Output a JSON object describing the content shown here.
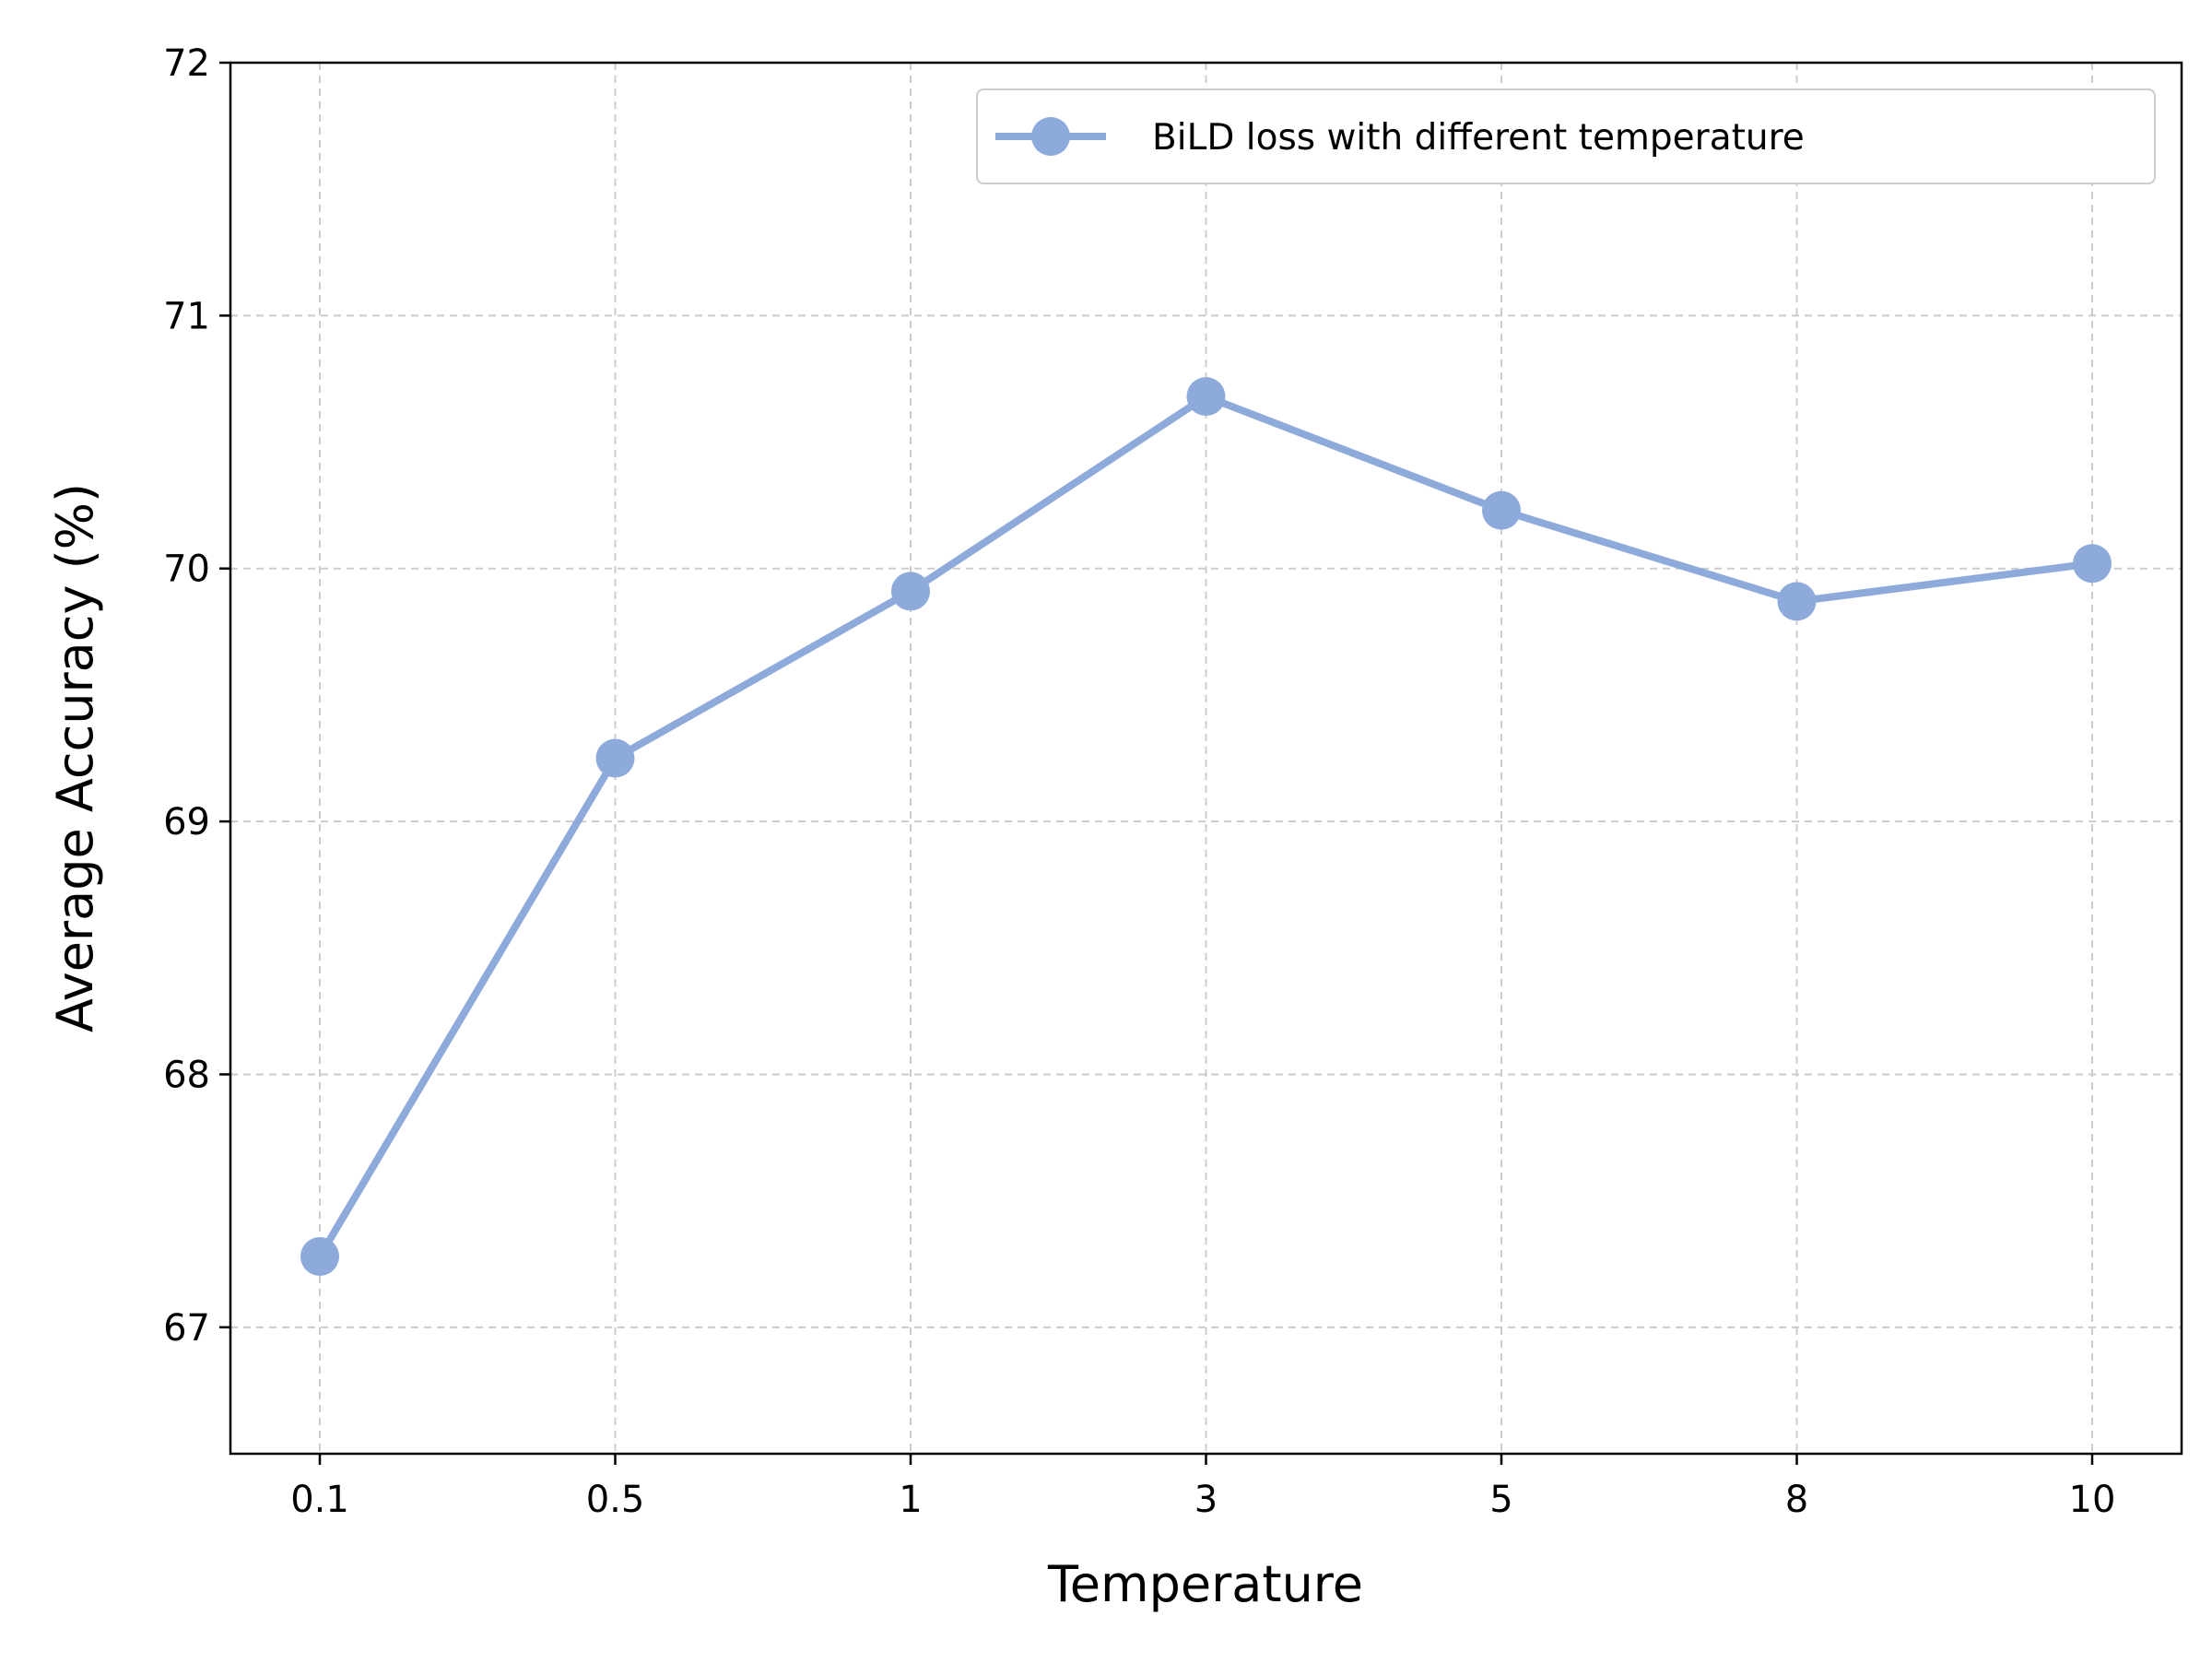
{
  "chart_data": {
    "type": "line",
    "title": "",
    "xlabel": "Temperature",
    "ylabel": "Average Accuracy (%)",
    "categories": [
      "0.1",
      "0.5",
      "1",
      "3",
      "5",
      "8",
      "10"
    ],
    "series": [
      {
        "name": "BiLD loss with different temperature",
        "values": [
          67.28,
          69.25,
          69.91,
          70.68,
          70.23,
          69.87,
          70.02
        ]
      }
    ],
    "ylim": [
      66.5,
      72
    ],
    "yticks": [
      "67",
      "68",
      "69",
      "70",
      "71",
      "72"
    ],
    "grid": true,
    "legend_position": "top-right",
    "colors": {
      "series": "#8eaadb",
      "grid": "#cccccc",
      "axis": "#000000"
    }
  }
}
